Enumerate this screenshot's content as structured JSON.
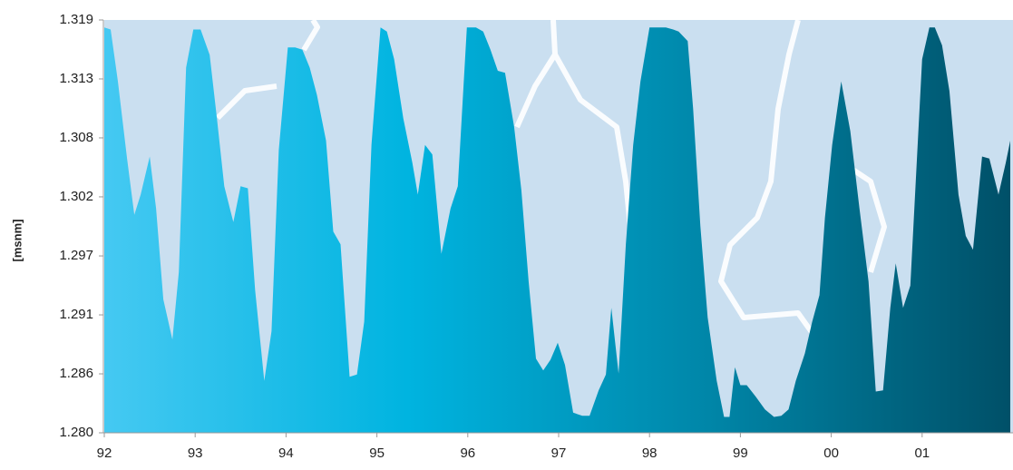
{
  "chart_data": {
    "type": "area",
    "y_label": "[msnm]",
    "x": [
      1992,
      1992.07,
      1992.15,
      1992.25,
      1992.33,
      1992.4,
      1992.5,
      1992.57,
      1992.65,
      1992.75,
      1992.82,
      1992.9,
      1992.98,
      1993.06,
      1993.16,
      1993.24,
      1993.32,
      1993.42,
      1993.5,
      1993.58,
      1993.66,
      1993.76,
      1993.84,
      1993.92,
      1994.02,
      1994.1,
      1994.18,
      1994.26,
      1994.34,
      1994.44,
      1994.52,
      1994.6,
      1994.7,
      1994.78,
      1994.86,
      1994.94,
      1995.04,
      1995.11,
      1995.19,
      1995.29,
      1995.39,
      1995.45,
      1995.53,
      1995.61,
      1995.71,
      1995.81,
      1995.89,
      1995.99,
      1996.09,
      1996.17,
      1996.25,
      1996.33,
      1996.41,
      1996.51,
      1996.59,
      1996.67,
      1996.75,
      1996.83,
      1996.91,
      1996.99,
      1997.07,
      1997.16,
      1997.26,
      1997.34,
      1997.44,
      1997.52,
      1997.58,
      1997.66,
      1997.74,
      1997.82,
      1997.9,
      1998,
      1998.08,
      1998.18,
      1998.26,
      1998.32,
      1998.42,
      1998.48,
      1998.56,
      1998.64,
      1998.74,
      1998.82,
      1998.88,
      1998.94,
      1999,
      1999.07,
      1999.17,
      1999.27,
      1999.37,
      1999.45,
      1999.53,
      1999.61,
      1999.71,
      1999.79,
      1999.87,
      1999.93,
      2000.01,
      2000.11,
      2000.21,
      2000.31,
      2000.41,
      2000.49,
      2000.57,
      2000.65,
      2000.71,
      2000.79,
      2000.87,
      2000.93,
      2001,
      2001.08,
      2001.14,
      2001.22,
      2001.3,
      2001.4,
      2001.48,
      2001.56,
      2001.66,
      2001.74,
      2001.84,
      2001.92,
      2001.97
    ],
    "values": [
      1.3183,
      1.3181,
      1.3132,
      1.3059,
      1.3006,
      1.3025,
      1.3061,
      1.3012,
      1.2926,
      1.2888,
      1.2952,
      1.3145,
      1.3181,
      1.3181,
      1.3157,
      1.3097,
      1.3033,
      1.2999,
      1.3033,
      1.3031,
      1.2935,
      1.2849,
      1.2896,
      1.3067,
      1.3164,
      1.3164,
      1.3162,
      1.3145,
      1.3119,
      1.3076,
      1.299,
      1.2978,
      1.2853,
      1.2855,
      1.2905,
      1.3072,
      1.3183,
      1.3179,
      1.3153,
      1.3097,
      1.3055,
      1.3025,
      1.3072,
      1.3063,
      1.2969,
      1.3012,
      1.3033,
      1.3183,
      1.3183,
      1.3179,
      1.3162,
      1.3142,
      1.314,
      1.3089,
      1.3029,
      1.2943,
      1.287,
      1.2859,
      1.2869,
      1.2885,
      1.2864,
      1.2819,
      1.2816,
      1.2816,
      1.284,
      1.2855,
      1.2918,
      1.2856,
      1.2978,
      1.3072,
      1.3132,
      1.3183,
      1.3183,
      1.3183,
      1.3181,
      1.3179,
      1.317,
      1.3106,
      1.2995,
      1.2909,
      1.2849,
      1.2815,
      1.2815,
      1.2862,
      1.2845,
      1.2845,
      1.2834,
      1.2822,
      1.2815,
      1.2816,
      1.2822,
      1.2849,
      1.2875,
      1.2905,
      1.293,
      1.3003,
      1.3072,
      1.3132,
      1.3085,
      1.3012,
      1.2943,
      1.2839,
      1.284,
      1.2918,
      1.296,
      1.2918,
      1.2939,
      1.3038,
      1.3153,
      1.3183,
      1.3183,
      1.3166,
      1.3123,
      1.3025,
      1.2986,
      1.2973,
      1.3061,
      1.3059,
      1.3025,
      1.3055,
      1.3076
    ],
    "color_stops": [
      "#45c9f2",
      "#00b4e0",
      "#0086a8",
      "#005068"
    ],
    "plot_background": "#cadff0",
    "xlim": [
      1992,
      2002
    ],
    "xticks": [
      {
        "value": 1992,
        "label": "92"
      },
      {
        "value": 1993,
        "label": "93"
      },
      {
        "value": 1994,
        "label": "94"
      },
      {
        "value": 1995,
        "label": "95"
      },
      {
        "value": 1996,
        "label": "96"
      },
      {
        "value": 1997,
        "label": "97"
      },
      {
        "value": 1998,
        "label": "98"
      },
      {
        "value": 1999,
        "label": "99"
      },
      {
        "value": 2000,
        "label": "00"
      },
      {
        "value": 2001,
        "label": "01"
      }
    ],
    "ylim": [
      1.28,
      1.319
    ],
    "yticks": [
      {
        "value": 1.28,
        "label": "1.280"
      },
      {
        "value": 1.28557,
        "label": "1.286"
      },
      {
        "value": 1.29114,
        "label": "1.291"
      },
      {
        "value": 1.29671,
        "label": "1.297"
      },
      {
        "value": 1.30229,
        "label": "1.302"
      },
      {
        "value": 1.30786,
        "label": "1.308"
      },
      {
        "value": 1.31343,
        "label": "1.313"
      },
      1.319
    ]
  }
}
